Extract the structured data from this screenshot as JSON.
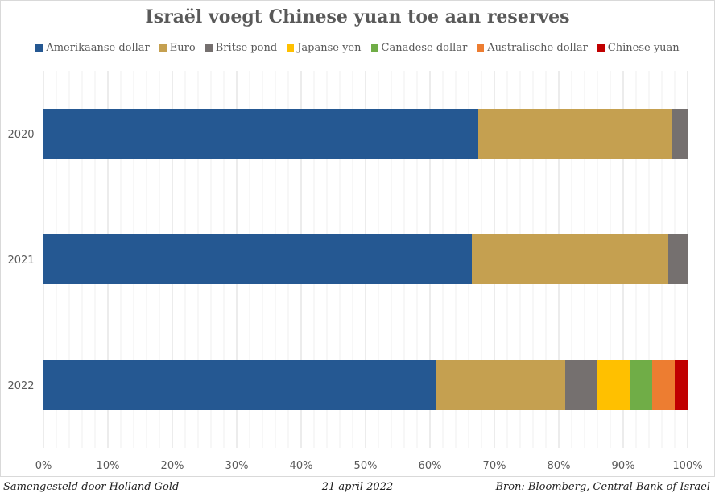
{
  "chart_data": {
    "type": "bar",
    "orientation": "horizontal",
    "stacked": "percent",
    "title": "Israël voegt Chinese yuan toe aan reserves",
    "categories": [
      "2020",
      "2021",
      "2022"
    ],
    "series": [
      {
        "name": "Amerikaanse dollar",
        "color": "#255892",
        "values": [
          67.5,
          66.5,
          61
        ]
      },
      {
        "name": "Euro",
        "color": "#c5a050",
        "values": [
          30,
          30.5,
          20
        ]
      },
      {
        "name": "Britse pond",
        "color": "#75706f",
        "values": [
          2.5,
          3,
          5
        ]
      },
      {
        "name": "Japanse yen",
        "color": "#ffc000",
        "values": [
          0,
          0,
          5
        ]
      },
      {
        "name": "Canadese dollar",
        "color": "#70ad47",
        "values": [
          0,
          0,
          3.5
        ]
      },
      {
        "name": "Australische dollar",
        "color": "#ed7d31",
        "values": [
          0,
          0,
          3.5
        ]
      },
      {
        "name": "Chinese yuan",
        "color": "#c00000",
        "values": [
          0,
          0,
          2
        ]
      }
    ],
    "xlim": [
      0,
      100
    ],
    "xticks": [
      "0%",
      "10%",
      "20%",
      "30%",
      "40%",
      "50%",
      "60%",
      "70%",
      "80%",
      "90%",
      "100%"
    ],
    "grid": true,
    "legend": "top"
  },
  "footer": {
    "left": "Samengesteld door Holland Gold",
    "center": "21 april 2022",
    "right": "Bron: Bloomberg, Central Bank of Israel"
  }
}
